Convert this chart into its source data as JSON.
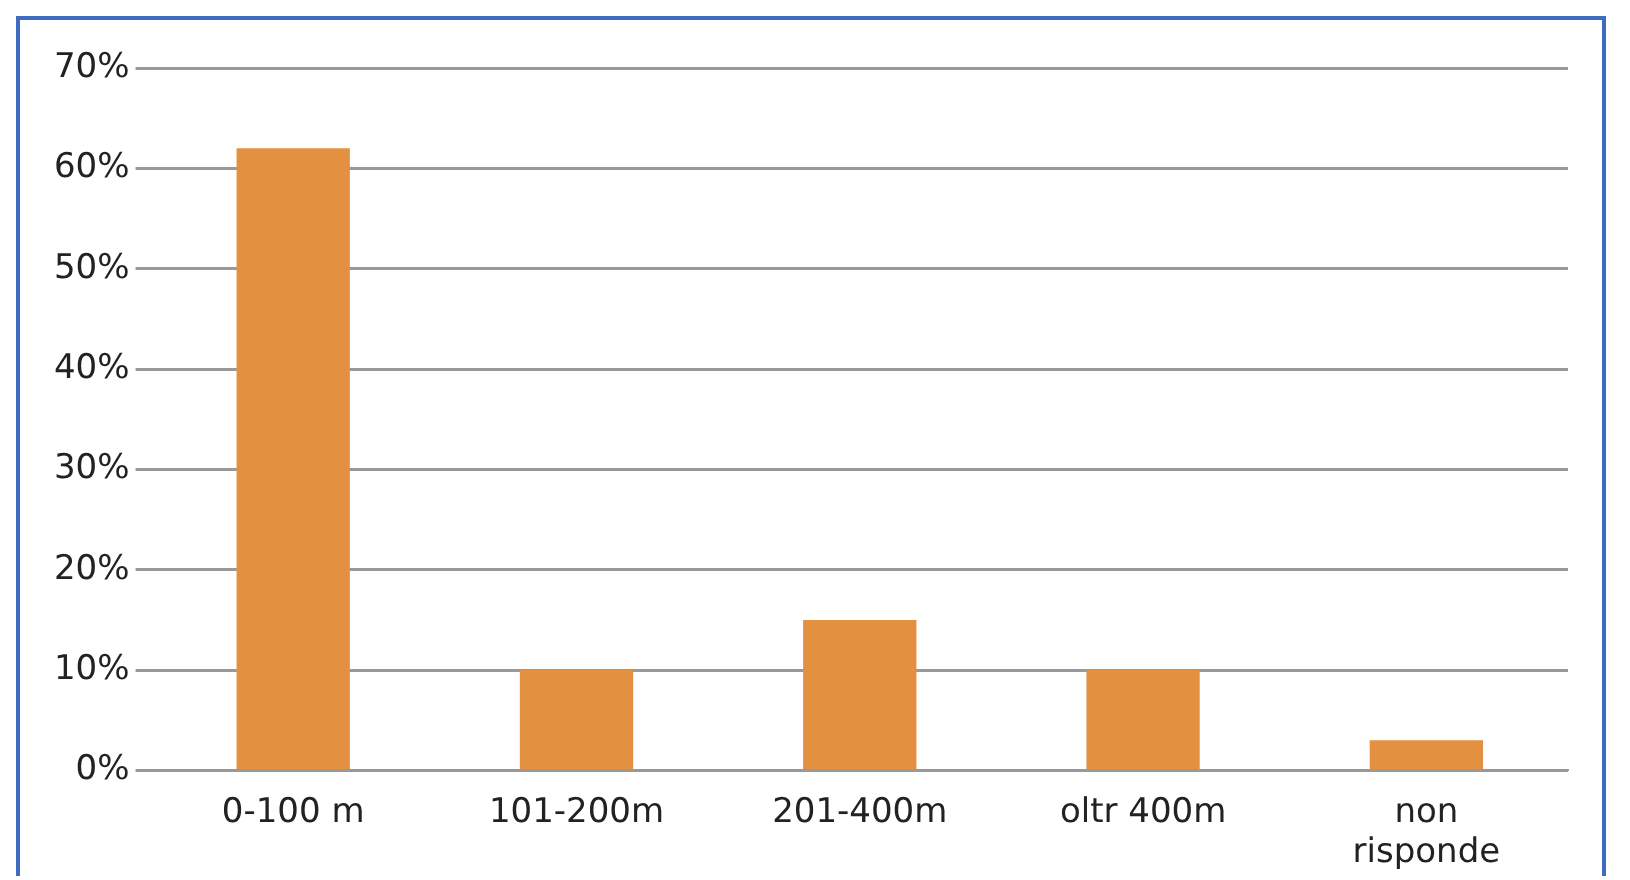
{
  "chart_data": {
    "type": "bar",
    "categories": [
      "0-100 m",
      "101-200m",
      "201-400m",
      "oltr 400m",
      "non risponde"
    ],
    "values": [
      62,
      10,
      15,
      10,
      3
    ],
    "color": "#e39140",
    "ylim": [
      0,
      70
    ],
    "yticks": [
      {
        "value": 0,
        "label": "0%"
      },
      {
        "value": 10,
        "label": "10%"
      },
      {
        "value": 20,
        "label": "20%"
      },
      {
        "value": 30,
        "label": "30%"
      },
      {
        "value": 40,
        "label": "40%"
      },
      {
        "value": 50,
        "label": "50%"
      },
      {
        "value": 60,
        "label": "60%"
      },
      {
        "value": 70,
        "label": "70%"
      }
    ],
    "grid": "y"
  }
}
